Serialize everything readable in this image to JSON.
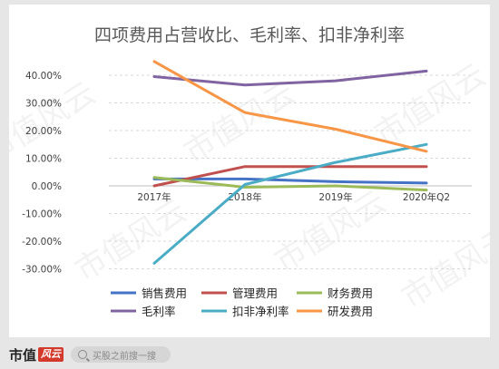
{
  "chart_data": {
    "type": "line",
    "title": "四项费用占营收比、毛利率、扣非净利率",
    "categories": [
      "2017年",
      "2018年",
      "2019年",
      "2020年Q2"
    ],
    "ylim": [
      -30,
      45
    ],
    "yticks": [
      {
        "value": 40,
        "label": "40.00%"
      },
      {
        "value": 30,
        "label": "30.00%"
      },
      {
        "value": 20,
        "label": "20.00%"
      },
      {
        "value": 10,
        "label": "10.00%"
      },
      {
        "value": 0,
        "label": "0.00%"
      },
      {
        "value": -10,
        "label": "-10.00%"
      },
      {
        "value": -20,
        "label": "-20.00%"
      },
      {
        "value": -30,
        "label": "-30.00%"
      }
    ],
    "grid": true,
    "legend_position": "bottom",
    "series": [
      {
        "name": "销售费用",
        "color": "#4472c4",
        "values": [
          2.5,
          2.5,
          1.5,
          1.0
        ]
      },
      {
        "name": "管理费用",
        "color": "#c0504d",
        "values": [
          0.0,
          7.0,
          7.0,
          7.0
        ]
      },
      {
        "name": "财务费用",
        "color": "#9bbb59",
        "values": [
          3.0,
          -0.5,
          0.0,
          -1.5
        ]
      },
      {
        "name": "毛利率",
        "color": "#8064a2",
        "values": [
          39.5,
          36.5,
          38.0,
          41.5
        ]
      },
      {
        "name": "扣非净利率",
        "color": "#4bacc6",
        "values": [
          -28.0,
          0.5,
          8.5,
          15.0
        ]
      },
      {
        "name": "研发费用",
        "color": "#f79646",
        "values": [
          45.0,
          26.5,
          20.5,
          12.5
        ]
      }
    ]
  },
  "watermark": "市值风云",
  "footer": {
    "brand_text": "市值",
    "brand_badge": "风云",
    "search_placeholder": "买股之前搜一搜"
  }
}
